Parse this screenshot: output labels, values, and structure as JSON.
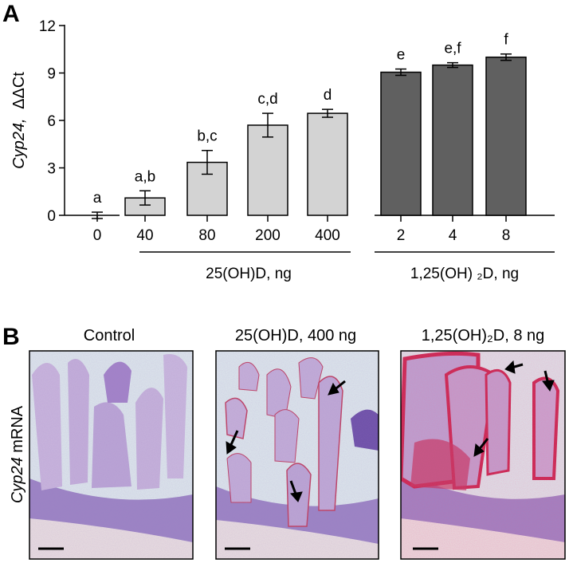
{
  "panel_a": {
    "letter": "A",
    "ylabel_gene": "Cyp24,",
    "ylabel_unit": "ΔΔCt"
  },
  "panel_b": {
    "letter": "B",
    "ylabel_gene": "Cyp24",
    "ylabel_rest": " mRNA",
    "titles": [
      "Control",
      "25(OH)D, 400 ng",
      "1,25(OH)₂D, 8 ng"
    ]
  },
  "chart_data": [
    {
      "type": "bar",
      "categories": [
        "0",
        "40",
        "80",
        "200",
        "400",
        "2",
        "4",
        "8"
      ],
      "values": [
        0.0,
        1.1,
        3.35,
        5.7,
        6.45,
        9.05,
        9.5,
        10.0
      ],
      "errors": [
        0.2,
        0.45,
        0.75,
        0.75,
        0.25,
        0.2,
        0.15,
        0.2
      ],
      "significance": [
        "a",
        "a,b",
        "b,c",
        "c,d",
        "d",
        "e",
        "e,f",
        "f"
      ],
      "groups": [
        {
          "label": "25(OH)D, ng",
          "categories": [
            "40",
            "80",
            "200",
            "400"
          ],
          "color": "#d3d3d3"
        },
        {
          "label": "1,25(OH) ₂D, ng",
          "categories": [
            "2",
            "4",
            "8"
          ],
          "color": "#606060"
        }
      ],
      "yticks": [
        0,
        3,
        6,
        9,
        12
      ],
      "ylim": [
        0,
        12
      ],
      "ylabel": "Cyp24, ΔΔCt",
      "xlabel": "",
      "grid": false
    }
  ],
  "colors": {
    "light_bar": "#d3d3d3",
    "dark_bar": "#606060",
    "histology_stain": "#c03060"
  }
}
